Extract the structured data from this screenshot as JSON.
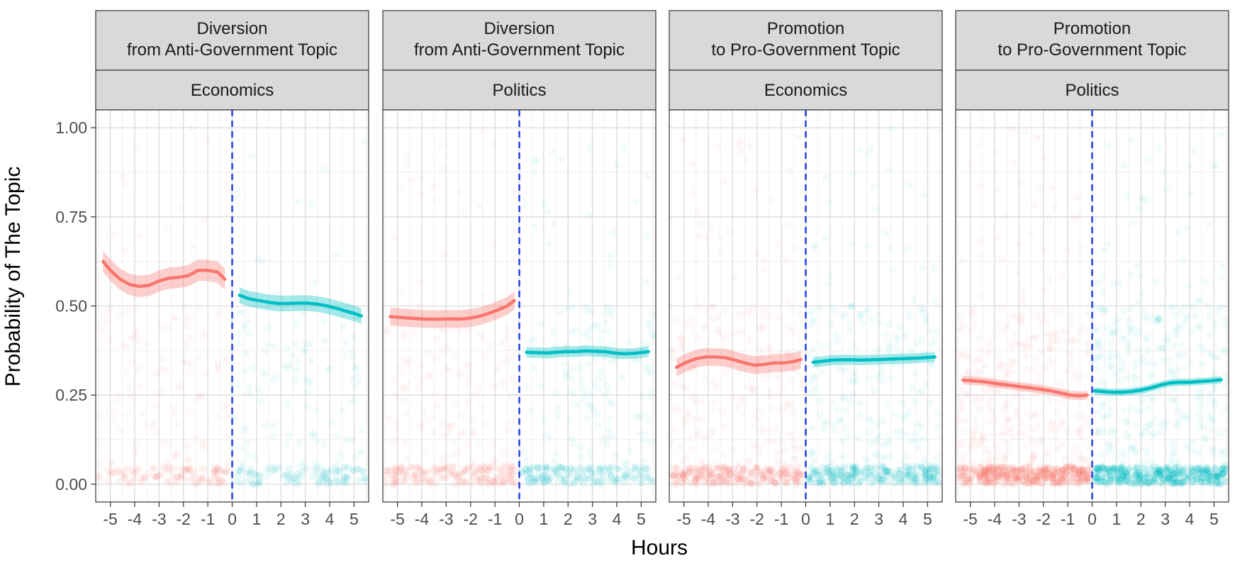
{
  "chart_data": {
    "type": "line",
    "xlabel": "Hours",
    "ylabel": "Probability of The Topic",
    "xlim": [
      -5.6,
      5.6
    ],
    "ylim": [
      -0.05,
      1.05
    ],
    "x_ticks": [
      -5,
      -4,
      -3,
      -2,
      -1,
      0,
      1,
      2,
      3,
      4,
      5
    ],
    "x_tick_labels": [
      "-5",
      "-4",
      "-3",
      "-2",
      "-1",
      "0",
      "1",
      "2",
      "3",
      "4",
      "5"
    ],
    "y_ticks": [
      0,
      0.25,
      0.5,
      0.75,
      1.0
    ],
    "y_tick_labels": [
      "0.00",
      "0.25",
      "0.50",
      "0.75",
      "1.00"
    ],
    "grid": true,
    "vline_x": 0,
    "colors": {
      "pre": "#F8766D",
      "post": "#00BFC4",
      "vline": "#1f3fe0",
      "strip_fill": "#d9d9d9"
    },
    "panels": [
      {
        "strip_top": "Diversion\nfrom Anti-Government Topic",
        "strip_bottom": "Economics",
        "density": 0.22,
        "series": [
          {
            "x": [
              -5.3,
              -5.0,
              -4.6,
              -4.2,
              -3.8,
              -3.4,
              -3.0,
              -2.6,
              -2.2,
              -1.8,
              -1.4,
              -1.0,
              -0.6,
              -0.3
            ],
            "y": [
              0.625,
              0.6,
              0.575,
              0.56,
              0.555,
              0.558,
              0.57,
              0.578,
              0.58,
              0.585,
              0.6,
              0.6,
              0.595,
              0.575
            ],
            "band": 0.03
          },
          {
            "x": [
              0.3,
              0.7,
              1.1,
              1.5,
              1.9,
              2.3,
              2.7,
              3.1,
              3.5,
              3.9,
              4.3,
              4.7,
              5.1,
              5.3
            ],
            "y": [
              0.53,
              0.52,
              0.515,
              0.51,
              0.507,
              0.507,
              0.508,
              0.508,
              0.505,
              0.5,
              0.493,
              0.485,
              0.477,
              0.472
            ],
            "band": 0.022
          }
        ]
      },
      {
        "strip_top": "Diversion\nfrom Anti-Government Topic",
        "strip_bottom": "Politics",
        "density": 0.38,
        "series": [
          {
            "x": [
              -5.3,
              -4.9,
              -4.5,
              -4.1,
              -3.7,
              -3.3,
              -2.9,
              -2.5,
              -2.1,
              -1.7,
              -1.3,
              -0.9,
              -0.5,
              -0.2
            ],
            "y": [
              0.47,
              0.468,
              0.466,
              0.464,
              0.463,
              0.463,
              0.464,
              0.463,
              0.465,
              0.47,
              0.478,
              0.488,
              0.5,
              0.515
            ],
            "band": 0.025
          },
          {
            "x": [
              0.3,
              0.7,
              1.1,
              1.5,
              1.9,
              2.3,
              2.7,
              3.1,
              3.5,
              3.9,
              4.3,
              4.7,
              5.1,
              5.3
            ],
            "y": [
              0.37,
              0.369,
              0.368,
              0.37,
              0.372,
              0.372,
              0.374,
              0.373,
              0.372,
              0.368,
              0.366,
              0.367,
              0.37,
              0.372
            ],
            "band": 0.015
          }
        ]
      },
      {
        "strip_top": "Promotion\nto Pro-Government Topic",
        "strip_bottom": "Economics",
        "density": 0.6,
        "series": [
          {
            "x": [
              -5.3,
              -4.9,
              -4.5,
              -4.1,
              -3.7,
              -3.3,
              -2.9,
              -2.5,
              -2.1,
              -1.7,
              -1.3,
              -0.9,
              -0.5,
              -0.2
            ],
            "y": [
              0.328,
              0.342,
              0.352,
              0.357,
              0.357,
              0.355,
              0.348,
              0.34,
              0.334,
              0.336,
              0.34,
              0.34,
              0.344,
              0.35
            ],
            "band": 0.025
          },
          {
            "x": [
              0.3,
              0.7,
              1.1,
              1.5,
              1.9,
              2.3,
              2.7,
              3.1,
              3.5,
              3.9,
              4.3,
              4.7,
              5.1,
              5.3
            ],
            "y": [
              0.342,
              0.345,
              0.348,
              0.349,
              0.349,
              0.348,
              0.349,
              0.35,
              0.351,
              0.352,
              0.353,
              0.354,
              0.356,
              0.357
            ],
            "band": 0.014
          }
        ]
      },
      {
        "strip_top": "Promotion\nto Pro-Government Topic",
        "strip_bottom": "Politics",
        "density": 1.0,
        "series": [
          {
            "x": [
              -5.3,
              -4.9,
              -4.5,
              -4.1,
              -3.7,
              -3.3,
              -2.9,
              -2.5,
              -2.1,
              -1.7,
              -1.3,
              -0.9,
              -0.5,
              -0.2
            ],
            "y": [
              0.292,
              0.29,
              0.288,
              0.284,
              0.28,
              0.277,
              0.273,
              0.27,
              0.266,
              0.262,
              0.256,
              0.25,
              0.248,
              0.25
            ],
            "band": 0.012
          },
          {
            "x": [
              0.1,
              0.4,
              0.8,
              1.2,
              1.6,
              2.0,
              2.4,
              2.8,
              3.2,
              3.6,
              4.0,
              4.4,
              4.8,
              5.3
            ],
            "y": [
              0.262,
              0.26,
              0.258,
              0.258,
              0.26,
              0.264,
              0.27,
              0.278,
              0.284,
              0.286,
              0.286,
              0.288,
              0.29,
              0.293
            ],
            "band": 0.01
          }
        ]
      }
    ]
  }
}
